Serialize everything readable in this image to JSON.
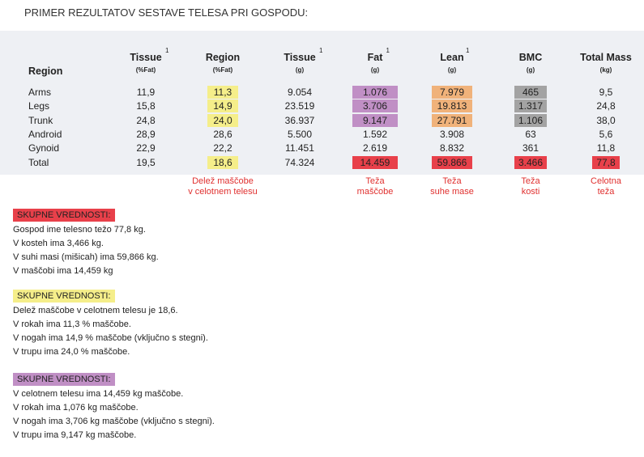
{
  "title": "PRIMER REZULTATOV SESTAVE TELESA PRI GOSPODU:",
  "table": {
    "columns": [
      {
        "title": "Region"
      },
      {
        "title": "Tissue",
        "unit": "(%Fat)",
        "note": "1"
      },
      {
        "title": "Region",
        "unit": "(%Fat)",
        "note_below": [
          "Delež maščobe",
          "v celotnem telesu"
        ]
      },
      {
        "title": "Tissue",
        "unit": "(g)",
        "note": "1"
      },
      {
        "title": "Fat",
        "unit": "(g)",
        "note": "1",
        "note_below": [
          "Teža",
          "maščobe"
        ]
      },
      {
        "title": "Lean",
        "unit": "(g)",
        "note": "1",
        "note_below": [
          "Teža",
          "suhe mase"
        ]
      },
      {
        "title": "BMC",
        "unit": "(g)",
        "note_below": [
          "Teža",
          "kosti"
        ]
      },
      {
        "title": "Total Mass",
        "unit": "(kg)",
        "note_below": [
          "Celotna",
          "teža"
        ]
      }
    ],
    "rows": [
      [
        "Arms",
        "11,9",
        "11,3",
        "9.054",
        "1.076",
        "7.979",
        "465",
        "9,5"
      ],
      [
        "Legs",
        "15,8",
        "14,9",
        "23.519",
        "3.706",
        "19.813",
        "1.317",
        "24,8"
      ],
      [
        "Trunk",
        "24,8",
        "24,0",
        "36.937",
        "9.147",
        "27.791",
        "1.106",
        "38,0"
      ],
      [
        "Android",
        "28,9",
        "28,6",
        "5.500",
        "1.592",
        "3.908",
        "63",
        "5,6"
      ],
      [
        "Gynoid",
        "22,9",
        "22,2",
        "11.451",
        "2.619",
        "8.832",
        "361",
        "11,8"
      ],
      [
        "Total",
        "19,5",
        "18,6",
        "74.324",
        "14.459",
        "59.866",
        "3.466",
        "77,8"
      ]
    ]
  },
  "sections": [
    {
      "heading": "SKUPNE VREDNOSTI:",
      "lines": [
        "Gospod ime telesno težo 77,8 kg.",
        "V kosteh ima 3,466 kg.",
        "V suhi masi (mišicah) ima 59,866 kg.",
        "V maščobi ima 14,459 kg"
      ]
    },
    {
      "heading": "SKUPNE VREDNOSTI:",
      "lines": [
        "Delež maščobe v celotnem telesu je 18,6.",
        "V rokah ima 11,3 % maščobe.",
        "V nogah ima 14,9 % maščobe (vključno s stegni).",
        "V trupu ima 24,0 % maščobe."
      ]
    },
    {
      "heading": "SKUPNE VREDNOSTI:",
      "lines": [
        "V celotnem telesu ima 14,459 kg maščobe.",
        "V rokah ima 1,076 kg maščobe.",
        "V nogah ima 3,706 kg maščobe (vključno s stegni).",
        "V trupu ima 9,147 kg maščobe."
      ]
    }
  ]
}
